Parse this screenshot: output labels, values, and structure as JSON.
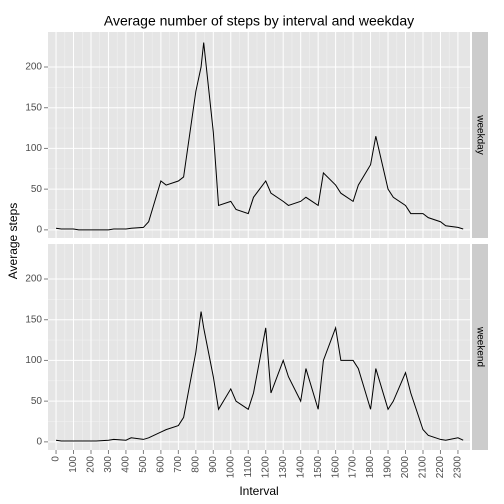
{
  "chart_data": {
    "type": "line",
    "title": "Average number of steps by interval and weekday",
    "x_label": "Interval",
    "y_label": "Average steps",
    "x": [
      0,
      30,
      100,
      130,
      200,
      230,
      300,
      330,
      400,
      430,
      500,
      530,
      600,
      630,
      700,
      730,
      800,
      830,
      845,
      900,
      930,
      1000,
      1030,
      1100,
      1130,
      1200,
      1230,
      1300,
      1330,
      1400,
      1430,
      1500,
      1530,
      1600,
      1630,
      1700,
      1730,
      1800,
      1830,
      1900,
      1930,
      2000,
      2030,
      2100,
      2130,
      2200,
      2230,
      2300,
      2330
    ],
    "series": [
      {
        "name": "weekday",
        "color": "#000000",
        "values": [
          2,
          1,
          1,
          0,
          0,
          0,
          0,
          1,
          1,
          2,
          3,
          10,
          60,
          55,
          60,
          65,
          170,
          200,
          230,
          120,
          30,
          35,
          25,
          20,
          40,
          60,
          45,
          35,
          30,
          35,
          40,
          30,
          70,
          55,
          45,
          35,
          55,
          80,
          115,
          50,
          40,
          30,
          20,
          20,
          15,
          10,
          5,
          3,
          1
        ]
      },
      {
        "name": "weekend",
        "color": "#000000",
        "values": [
          2,
          1,
          1,
          1,
          1,
          1,
          2,
          3,
          2,
          5,
          3,
          5,
          12,
          15,
          20,
          30,
          110,
          160,
          140,
          80,
          40,
          65,
          50,
          40,
          60,
          140,
          60,
          100,
          80,
          50,
          90,
          40,
          100,
          140,
          100,
          100,
          90,
          40,
          90,
          40,
          50,
          85,
          60,
          15,
          8,
          3,
          2,
          5,
          2
        ]
      }
    ],
    "xlim": [
      -46,
      2369
    ],
    "xticks": [
      0,
      100,
      200,
      300,
      400,
      500,
      600,
      700,
      800,
      900,
      1000,
      1100,
      1200,
      1300,
      1400,
      1500,
      1600,
      1700,
      1800,
      1900,
      2000,
      2100,
      2200,
      2300
    ],
    "ylim": [
      -10,
      243
    ],
    "yticks": [
      0,
      50,
      100,
      150,
      200
    ],
    "grid": true
  }
}
